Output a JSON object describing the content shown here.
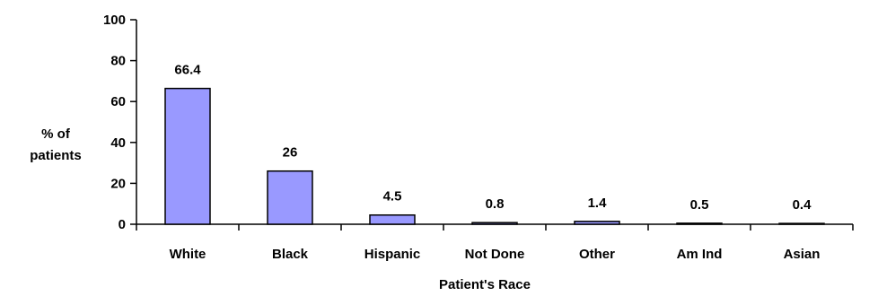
{
  "chart_data": {
    "type": "bar",
    "categories": [
      "White",
      "Black",
      "Hispanic",
      "Not Done",
      "Other",
      "Am Ind",
      "Asian"
    ],
    "values": [
      66.4,
      26,
      4.5,
      0.8,
      1.4,
      0.5,
      0.4
    ],
    "data_labels": [
      "66.4",
      "26",
      "4.5",
      "0.8",
      "1.4",
      "0.5",
      "0.4"
    ],
    "title": "",
    "xlabel": "Patient's Race",
    "ylabel_lines": [
      "% of",
      "patients"
    ],
    "ylim": [
      0,
      100
    ],
    "yticks": [
      0,
      20,
      40,
      60,
      80,
      100
    ],
    "grid": false,
    "legend": "none",
    "bar_color": "#9999ff",
    "bar_edge_color": "#000000"
  }
}
